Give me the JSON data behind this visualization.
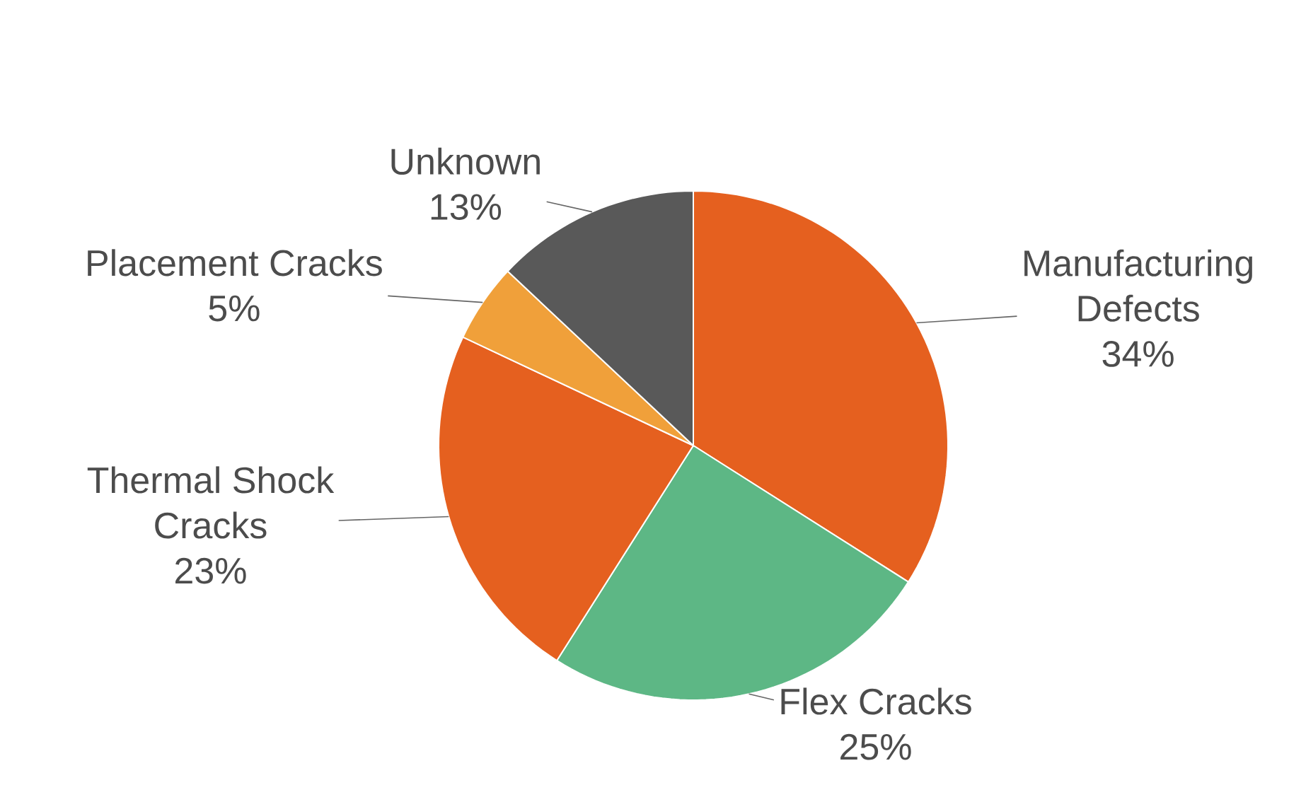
{
  "chart_data": {
    "type": "pie",
    "categories": [
      "Manufacturing Defects",
      "Flex Cracks",
      "Thermal Shock Cracks",
      "Placement Cracks",
      "Unknown"
    ],
    "values": [
      34,
      25,
      23,
      5,
      13
    ],
    "value_labels": [
      "34%",
      "25%",
      "23%",
      "5%",
      "13%"
    ],
    "colors": [
      "#e5601f",
      "#5db785",
      "#e5601f",
      "#f0a03a",
      "#595959"
    ]
  }
}
